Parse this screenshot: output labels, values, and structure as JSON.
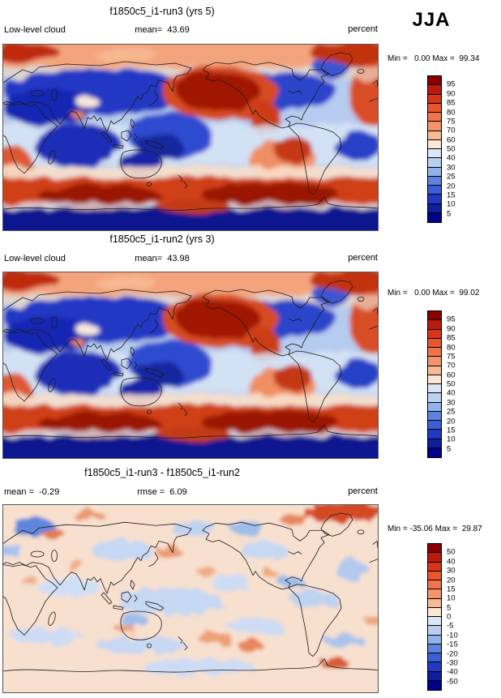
{
  "page": {
    "season": "JJA"
  },
  "colorbar_colors": [
    "#8b0000",
    "#bd1a0e",
    "#d93419",
    "#ea552c",
    "#f0744a",
    "#f4946c",
    "#f8ba95",
    "#fce6d4",
    "#dbe7f7",
    "#bad0f0",
    "#91b2ea",
    "#5e82e0",
    "#3a5ed8",
    "#2138c6",
    "#101d9e",
    "#00008b"
  ],
  "chart_data": [
    {
      "type": "heatmap",
      "kind": "global-lat-lon-filled-contour-map",
      "title": "f1850c5_i1-run3 (yrs 5)",
      "variable": "Low-level cloud",
      "units": "percent",
      "season": "JJA",
      "stats": {
        "mean": 43.69,
        "min": 0.0,
        "max": 99.34
      },
      "labels": {
        "left": "Low-level cloud",
        "center": "mean=  43.69",
        "right": "percent",
        "minmax": "Min =   0.00 Max =  99.34"
      },
      "colorbar": {
        "ticks": [
          "95",
          "90",
          "85",
          "80",
          "75",
          "70",
          "60",
          "50",
          "40",
          "30",
          "25",
          "20",
          "15",
          "10",
          "5"
        ]
      },
      "features": [
        "salmon/red Arctic band with dark red patches",
        "dark blue over Eurasia and North America",
        "dark red maximum over North Pacific extending to California coast",
        "pale blue tropics, dark blue Indian Ocean and west Pacific",
        "red stratus regions off Peru and off southwest Africa",
        "dark red Southern Ocean band, navy Antarctic interior"
      ]
    },
    {
      "type": "heatmap",
      "kind": "global-lat-lon-filled-contour-map",
      "title": "f1850c5_i1-run2 (yrs 3)",
      "variable": "Low-level cloud",
      "units": "percent",
      "season": "JJA",
      "stats": {
        "mean": 43.98,
        "min": 0.0,
        "max": 99.02
      },
      "labels": {
        "left": "Low-level cloud",
        "center": "mean=  43.98",
        "right": "percent",
        "minmax": "Min =   0.00 Max =  99.02"
      },
      "colorbar": {
        "ticks": [
          "95",
          "90",
          "85",
          "80",
          "75",
          "70",
          "60",
          "50",
          "40",
          "30",
          "25",
          "20",
          "15",
          "10",
          "5"
        ]
      },
      "features": [
        "pattern nearly identical to run3 panel",
        "red Arctic band, blue continents, dark red North Pacific",
        "dark red Southern Ocean band, navy Antarctica"
      ]
    },
    {
      "type": "heatmap",
      "kind": "global-lat-lon-difference-map",
      "title": "f1850c5_i1-run3 - f1850c5_i1-run2",
      "variable": "Low-level cloud difference",
      "units": "percent",
      "season": "JJA",
      "stats": {
        "mean": -0.29,
        "rmse": 6.09,
        "min": -35.06,
        "max": 29.87
      },
      "labels": {
        "left": "mean =  -0.29",
        "center": "rmse =  6.09",
        "right": "percent",
        "minmax": "Min = -35.06 Max =  29.87"
      },
      "colorbar": {
        "ticks": [
          "50",
          "40",
          "30",
          "20",
          "15",
          "10",
          "5",
          "0",
          "-5",
          "-10",
          "-15",
          "-20",
          "-30",
          "-40",
          "-50"
        ]
      },
      "features": [
        "mostly near-zero pale peach field with mottled small anomalies",
        "blue negative patch over Scandinavia",
        "red positive patch over Arctic near Canadian Archipelago",
        "scattered weak red/blue speckles over oceans and Antarctic Peninsula"
      ]
    }
  ]
}
